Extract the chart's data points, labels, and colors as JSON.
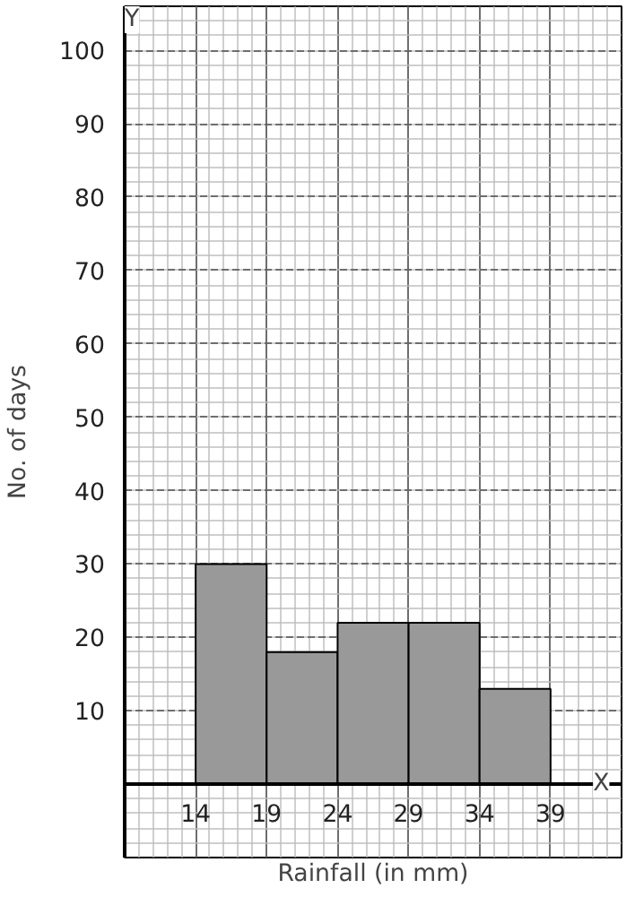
{
  "chart_data": {
    "type": "histogram",
    "xlabel": "Rainfall (in mm)",
    "ylabel": "No. of days",
    "bins": [
      14,
      19,
      24,
      29,
      34,
      39
    ],
    "values": [
      30,
      18,
      22,
      22,
      13
    ],
    "color": "#999999",
    "xlim": [
      9,
      44
    ],
    "ylim": [
      -10,
      106
    ],
    "xticks": [
      14,
      19,
      24,
      29,
      34,
      39
    ],
    "yticks": [
      10,
      20,
      30,
      40,
      50,
      60,
      70,
      80,
      90,
      100
    ],
    "grid": true,
    "annotations": [
      "X",
      "Y"
    ]
  }
}
